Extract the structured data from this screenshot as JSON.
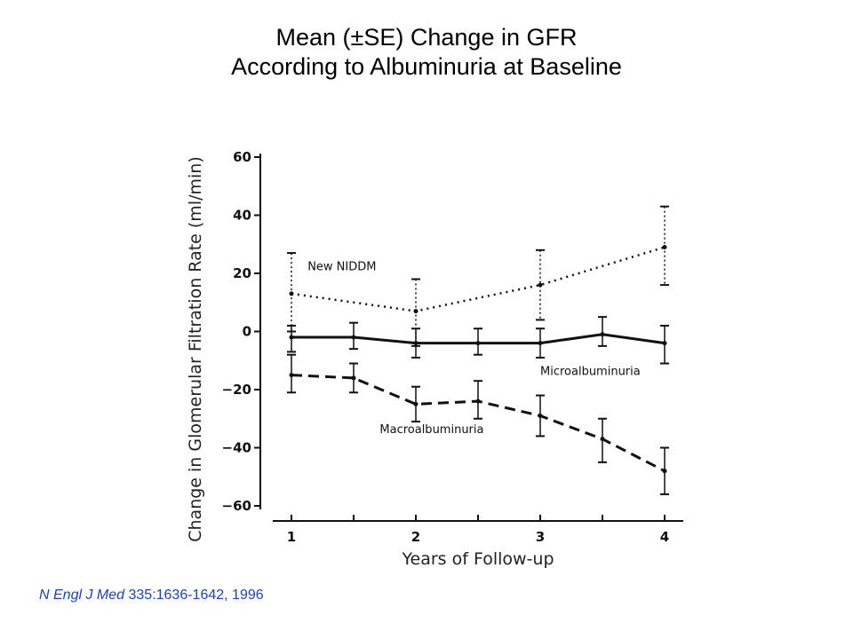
{
  "title": {
    "line1": "Mean (±SE) Change in GFR",
    "line2": "According to Albuminuria at Baseline"
  },
  "citation": {
    "journal": "N Engl J Med",
    "reference": " 335:1636-1642, 1996"
  },
  "chart_data": {
    "type": "line",
    "xlabel": "Years of Follow-up",
    "ylabel": "Change in Glomerular Filtration Rate (ml/min)",
    "xlim": [
      0.85,
      4.15
    ],
    "ylim": [
      -60,
      60
    ],
    "x_ticks": [
      1,
      1.5,
      2,
      2.5,
      3,
      3.5,
      4
    ],
    "x_tick_labels": [
      {
        "x": 1,
        "label": "1"
      },
      {
        "x": 2,
        "label": "2"
      },
      {
        "x": 3,
        "label": "3"
      },
      {
        "x": 4,
        "label": "4"
      }
    ],
    "y_ticks": [
      60,
      40,
      20,
      0,
      -20,
      -40,
      -60
    ],
    "y_tick_labels": [
      "60",
      "40",
      "20",
      "0",
      "−20",
      "−40",
      "−60"
    ],
    "grid": false,
    "series": [
      {
        "name": "New NIDDM",
        "style": "dotted",
        "points": [
          {
            "x": 1,
            "y": 13,
            "lo": 0,
            "hi": 27
          },
          {
            "x": 2,
            "y": 7,
            "lo": -5,
            "hi": 18
          },
          {
            "x": 3,
            "y": 16,
            "lo": 4,
            "hi": 28
          },
          {
            "x": 4,
            "y": 29,
            "lo": 16,
            "hi": 43
          }
        ]
      },
      {
        "name": "Microalbuminuria",
        "style": "solid",
        "points": [
          {
            "x": 1,
            "y": -2,
            "lo": -7,
            "hi": 2
          },
          {
            "x": 1.5,
            "y": -2,
            "lo": -6,
            "hi": 3
          },
          {
            "x": 2,
            "y": -4,
            "lo": -9,
            "hi": 1
          },
          {
            "x": 2.5,
            "y": -4,
            "lo": -8,
            "hi": 1
          },
          {
            "x": 3,
            "y": -4,
            "lo": -9,
            "hi": 1
          },
          {
            "x": 3.5,
            "y": -1,
            "lo": -5,
            "hi": 5
          },
          {
            "x": 4,
            "y": -4,
            "lo": -11,
            "hi": 2
          }
        ]
      },
      {
        "name": "Macroalbuminuria",
        "style": "dashed",
        "points": [
          {
            "x": 1,
            "y": -15,
            "lo": -21,
            "hi": -8
          },
          {
            "x": 1.5,
            "y": -16,
            "lo": -21,
            "hi": -11
          },
          {
            "x": 2,
            "y": -25,
            "lo": -31,
            "hi": -19
          },
          {
            "x": 2.5,
            "y": -24,
            "lo": -30,
            "hi": -17
          },
          {
            "x": 3,
            "y": -29,
            "lo": -36,
            "hi": -22
          },
          {
            "x": 3.5,
            "y": -37,
            "lo": -45,
            "hi": -30
          },
          {
            "x": 4,
            "y": -48,
            "lo": -56,
            "hi": -40
          }
        ]
      }
    ],
    "annotations": [
      {
        "text": "New NIDDM",
        "x": 1.13,
        "y": 21
      },
      {
        "text": "Microalbuminuria",
        "x": 3.0,
        "y": -15
      },
      {
        "text": "Macroalbuminuria",
        "x": 1.71,
        "y": -35
      }
    ]
  }
}
